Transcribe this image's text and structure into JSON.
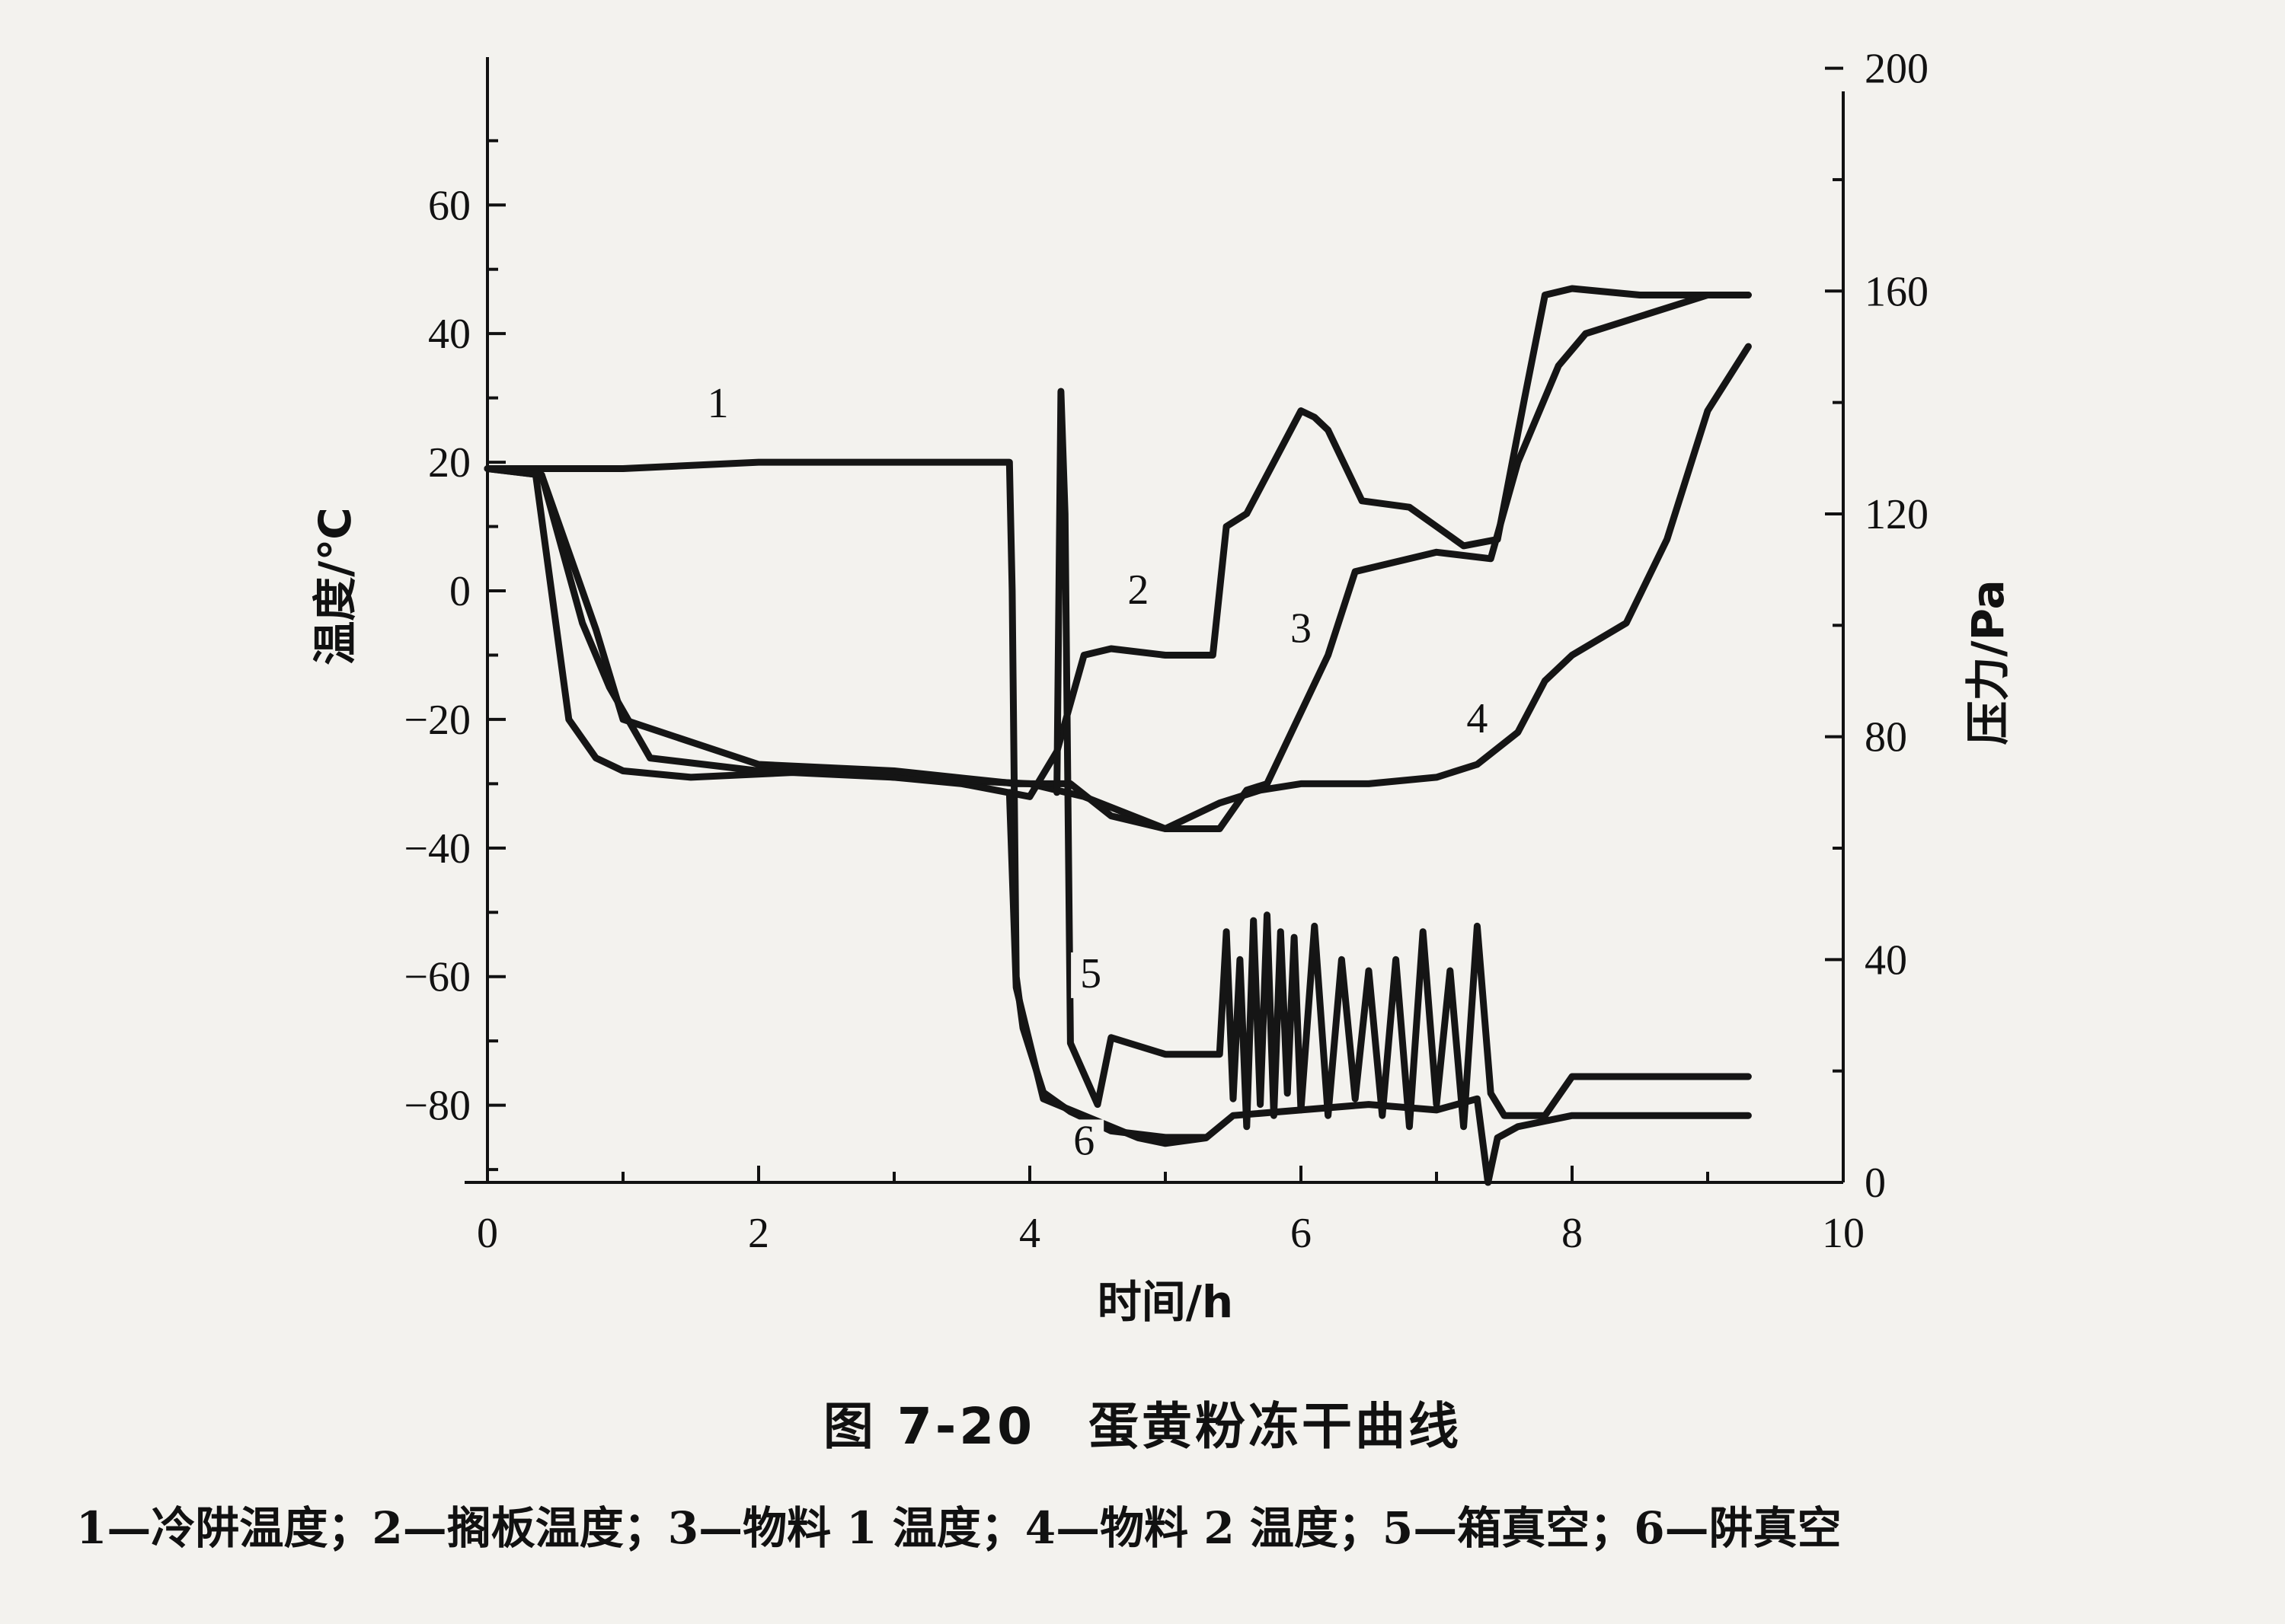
{
  "chart_data": {
    "type": "line",
    "xlabel": "时间/h",
    "ylabel": "温度/℃",
    "y2label": "压力/Pa",
    "xlim": [
      0,
      10
    ],
    "ylim": [
      -92,
      83
    ],
    "y2lim": [
      0,
      202
    ],
    "x_ticks": [
      "0",
      "2",
      "4",
      "6",
      "8",
      "10"
    ],
    "y_ticks": [
      "60",
      "40",
      "20",
      "0",
      "−20",
      "−40",
      "−60",
      "−80"
    ],
    "y2_ticks": [
      "200",
      "160",
      "120",
      "80",
      "40",
      "0"
    ],
    "grid": false,
    "series": [
      {
        "name": "1",
        "axis": "temperature",
        "label_at": [
          1.7,
          27
        ],
        "x": [
          0,
          0.4,
          1.0,
          2.0,
          3.0,
          3.85,
          3.87,
          3.9,
          3.95,
          4.1,
          4.3,
          4.6,
          5.0,
          5.3
        ],
        "y": [
          19,
          19,
          19,
          20,
          20,
          20,
          0,
          -60,
          -68,
          -78,
          -81,
          -84,
          -85,
          -85
        ]
      },
      {
        "name": "2",
        "axis": "temperature",
        "label_at": [
          4.8,
          -2
        ],
        "x": [
          0,
          0.35,
          0.6,
          0.8,
          1.0,
          1.5,
          2.5,
          3.5,
          4.0,
          4.2,
          4.4,
          4.6,
          5.0,
          5.35,
          5.45,
          5.6,
          5.8,
          6.0,
          6.1,
          6.2,
          6.45,
          6.8,
          7.0,
          7.2,
          7.45,
          7.65,
          7.8,
          8.0,
          8.5,
          9.0,
          9.3
        ],
        "y": [
          19,
          19,
          -20,
          -26,
          -28,
          -29,
          -28,
          -30,
          -32,
          -25,
          -10,
          -9,
          -10,
          -10,
          10,
          12,
          20,
          28,
          27,
          25,
          14,
          13,
          10,
          7,
          8,
          30,
          46,
          47,
          46,
          46,
          46
        ]
      },
      {
        "name": "3",
        "axis": "temperature",
        "label_at": [
          6.0,
          -8
        ],
        "x": [
          0,
          0.4,
          0.7,
          0.9,
          1.2,
          2.0,
          3.0,
          4.0,
          4.4,
          5.0,
          5.4,
          5.6,
          5.75,
          6.2,
          6.4,
          7.0,
          7.4,
          7.6,
          7.9,
          8.1,
          9.0,
          9.3
        ],
        "y": [
          19,
          18,
          -5,
          -15,
          -26,
          -28,
          -29,
          -30,
          -32,
          -37,
          -37,
          -31,
          -30,
          -10,
          3,
          6,
          5,
          20,
          35,
          40,
          46,
          46
        ]
      },
      {
        "name": "4",
        "axis": "temperature",
        "label_at": [
          7.3,
          -22
        ],
        "x": [
          0,
          0.4,
          0.8,
          1.0,
          2.0,
          3.0,
          3.9,
          4.3,
          4.6,
          5.0,
          5.4,
          5.7,
          6.0,
          6.5,
          7.0,
          7.3,
          7.6,
          7.8,
          8.0,
          8.4,
          8.7,
          9.0,
          9.3
        ],
        "y": [
          19,
          18,
          -6,
          -20,
          -27,
          -28,
          -30,
          -30,
          -35,
          -37,
          -33,
          -31,
          -30,
          -30,
          -29,
          -27,
          -22,
          -14,
          -10,
          -5,
          8,
          28,
          38
        ]
      },
      {
        "name": "5",
        "axis": "pressure",
        "label_at": [
          4.45,
          35
        ],
        "x": [
          4.2,
          4.23,
          4.26,
          4.3,
          4.5,
          4.6,
          5.0,
          5.4,
          5.45,
          5.5,
          5.55,
          5.6,
          5.65,
          5.7,
          5.75,
          5.8,
          5.85,
          5.9,
          5.95,
          6.0,
          6.1,
          6.2,
          6.3,
          6.4,
          6.5,
          6.6,
          6.7,
          6.8,
          6.9,
          7.0,
          7.1,
          7.2,
          7.3,
          7.4,
          7.5,
          7.8,
          8.0,
          8.5,
          9.0,
          9.3
        ],
        "y": [
          70,
          142,
          120,
          25,
          14,
          26,
          23,
          23,
          45,
          15,
          40,
          10,
          47,
          14,
          48,
          12,
          45,
          16,
          44,
          13,
          46,
          12,
          40,
          15,
          38,
          12,
          40,
          10,
          45,
          14,
          38,
          10,
          46,
          16,
          12,
          12,
          19,
          19,
          19,
          19
        ]
      },
      {
        "name": "6",
        "axis": "pressure",
        "label_at": [
          4.4,
          5
        ],
        "x": [
          3.85,
          3.9,
          4.0,
          4.1,
          4.3,
          4.5,
          4.8,
          5.0,
          5.3,
          5.5,
          6.0,
          6.5,
          7.0,
          7.3,
          7.38,
          7.45,
          7.6,
          8.0,
          8.5,
          9.0,
          9.3
        ],
        "y": [
          70,
          35,
          25,
          15,
          13,
          11,
          8,
          7,
          8,
          12,
          13,
          14,
          13,
          15,
          0,
          8,
          10,
          12,
          12,
          12,
          12
        ]
      }
    ]
  },
  "caption": "图 7-20　蛋黄粉冻干曲线",
  "legend_text": "1—冷阱温度；2—搁板温度；3—物料 1 温度；4—物料 2 温度；5—箱真空；6—阱真空"
}
